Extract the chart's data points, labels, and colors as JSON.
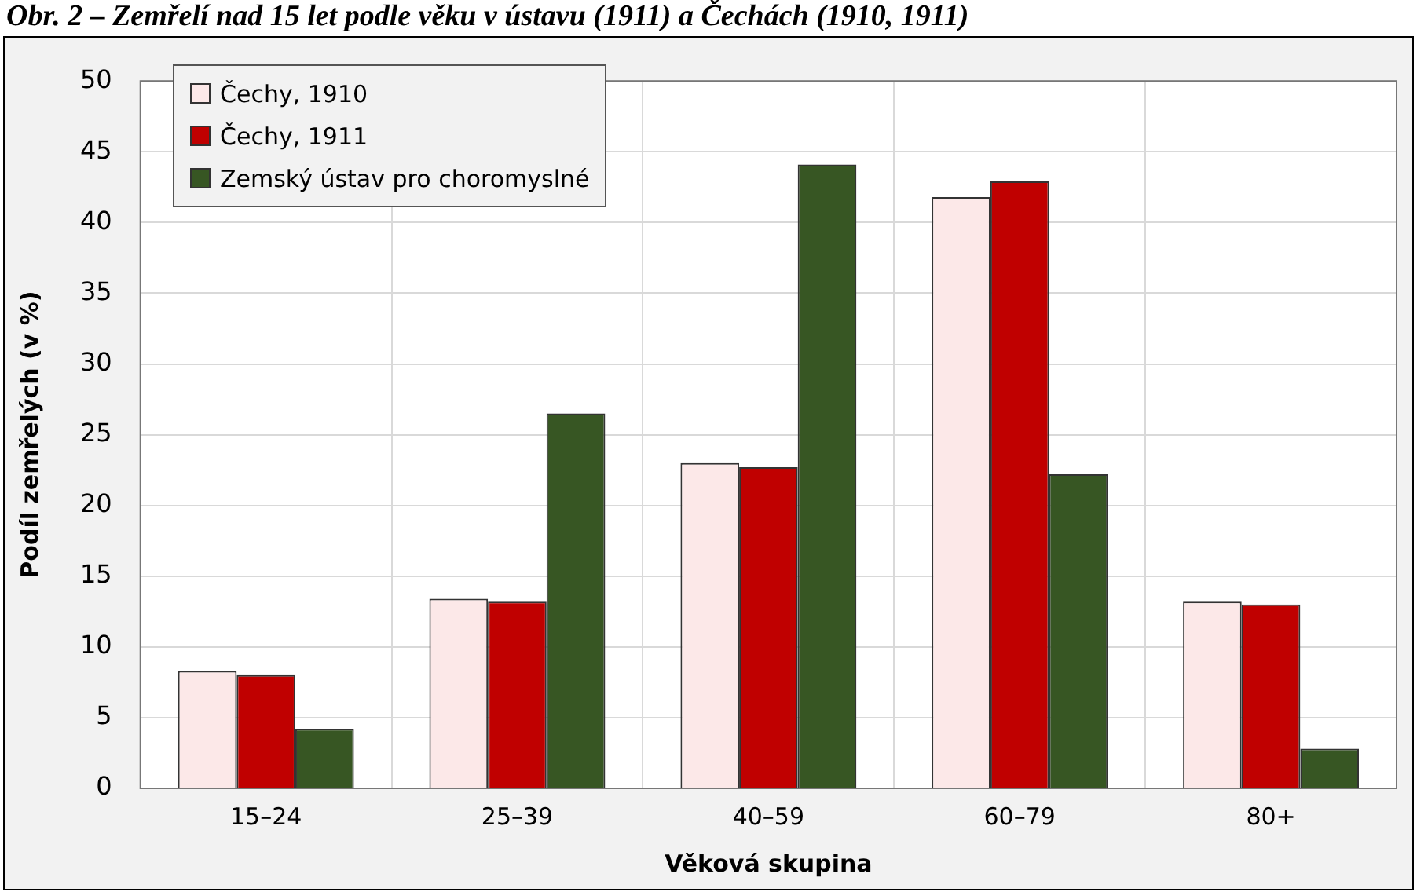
{
  "chart_data": {
    "type": "bar",
    "title": "Obr. 2 – Zemřelí nad 15 let podle věku v ústavu (1911) a Čechách (1910, 1911)",
    "xlabel": "Věková skupina",
    "ylabel": "Podíl zemřelých (v %)",
    "categories": [
      "15–24",
      "25–39",
      "40–59",
      "60–79",
      "80+"
    ],
    "series": [
      {
        "name": "Čechy, 1910",
        "color": "#fce8e8",
        "values": [
          8.3,
          13.4,
          23.0,
          41.8,
          13.2
        ]
      },
      {
        "name": "Čechy, 1911",
        "color": "#c00000",
        "values": [
          8.0,
          13.2,
          22.7,
          42.9,
          13.0
        ]
      },
      {
        "name": "Zemský ústav pro choromyslné",
        "color": "#375623",
        "values": [
          4.2,
          26.5,
          44.1,
          22.2,
          2.8
        ]
      }
    ],
    "ylim": [
      0,
      50
    ],
    "yticks": [
      0,
      5,
      10,
      15,
      20,
      25,
      30,
      35,
      40,
      45,
      50
    ],
    "grid": true,
    "legend": "top left"
  }
}
